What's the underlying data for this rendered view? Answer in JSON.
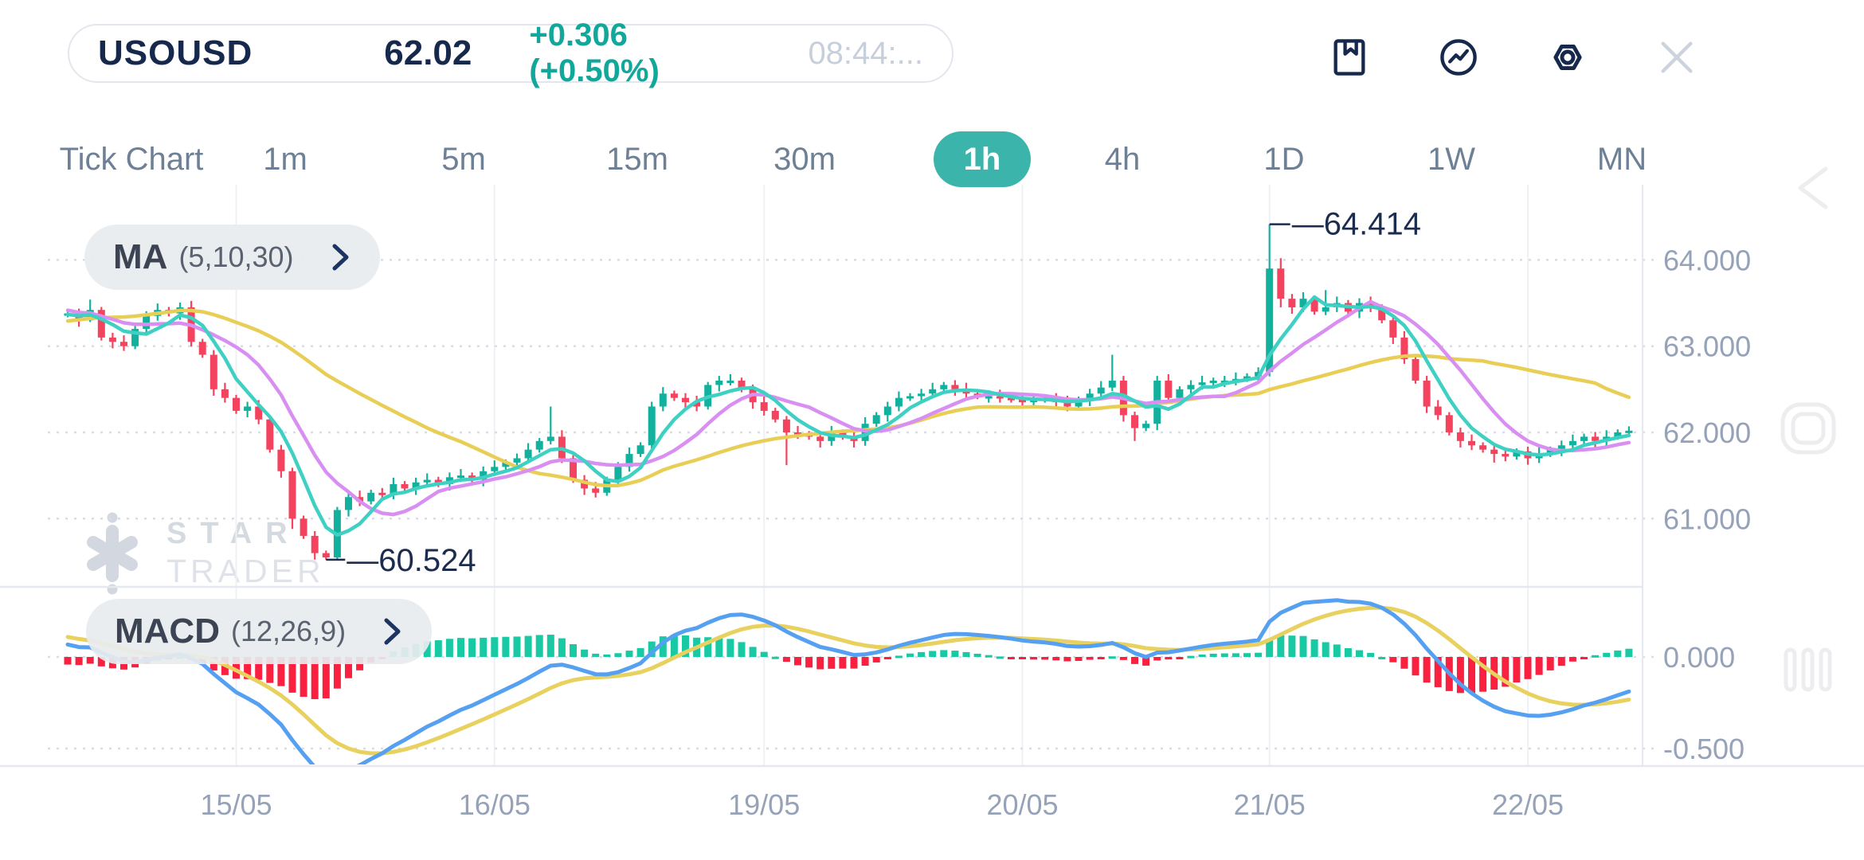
{
  "header": {
    "symbol": "USOUSD",
    "price": "62.02",
    "change": "+0.306 (+0.50%)",
    "time": "08:44:...",
    "icons": [
      "bookmark-icon",
      "indicator-icon",
      "settings-icon",
      "close-icon"
    ]
  },
  "timeframes": {
    "items": [
      "Tick Chart",
      "1m",
      "5m",
      "15m",
      "30m",
      "1h",
      "4h",
      "1D",
      "1W",
      "MN"
    ],
    "selected": "1h"
  },
  "indicators": {
    "ma": {
      "name": "MA",
      "params": "(5,10,30)"
    },
    "macd": {
      "name": "MACD",
      "params": "(12,26,9)"
    }
  },
  "watermark": {
    "line1": "STAR",
    "line2": "TRADER"
  },
  "chart_data": {
    "type": "candlestick",
    "timeframe": "1h",
    "price_axis": {
      "ticks": [
        "64.000",
        "63.000",
        "62.000",
        "61.000"
      ],
      "tick_values": [
        64,
        63,
        62,
        61
      ]
    },
    "macd_axis": {
      "ticks": [
        "0.000",
        "-0.500"
      ],
      "tick_values": [
        0,
        -0.5
      ]
    },
    "high_annotation": {
      "text": "—64.414",
      "value": 64.414,
      "bar": 107
    },
    "low_annotation": {
      "text": "—60.524",
      "value": 60.524,
      "bar": 23
    },
    "x_axis": {
      "labels": [
        "15/05",
        "16/05",
        "19/05",
        "20/05",
        "21/05",
        "22/05"
      ],
      "bars": [
        15,
        38,
        62,
        85,
        107,
        130
      ]
    },
    "ma_periods": [
      5,
      10,
      30
    ],
    "macd_params": [
      12,
      26,
      9
    ],
    "seed_closes": [
      62.9,
      63.1,
      63.3,
      63.5,
      63.65,
      63.7,
      63.72,
      63.7,
      63.68,
      63.65,
      63.6,
      63.55,
      63.5,
      63.45,
      63.42,
      63.4,
      63.38,
      63.36,
      63.35,
      63.37
    ],
    "closes": [
      63.38,
      63.3,
      63.42,
      63.1,
      63.05,
      63.0,
      63.2,
      63.35,
      63.42,
      63.38,
      63.45,
      63.05,
      62.9,
      62.5,
      62.4,
      62.25,
      62.3,
      62.15,
      61.8,
      61.55,
      61.0,
      60.8,
      60.6,
      60.55,
      61.1,
      61.25,
      61.2,
      61.3,
      61.28,
      61.4,
      61.35,
      61.42,
      61.45,
      61.4,
      61.48,
      61.5,
      61.45,
      61.55,
      61.6,
      61.65,
      61.7,
      61.8,
      61.9,
      61.95,
      61.7,
      61.45,
      61.35,
      61.3,
      61.45,
      61.6,
      61.75,
      61.85,
      62.3,
      62.45,
      62.4,
      62.35,
      62.3,
      62.55,
      62.6,
      62.6,
      62.5,
      62.35,
      62.25,
      62.15,
      62.0,
      61.98,
      61.95,
      61.9,
      62.0,
      61.95,
      61.9,
      62.1,
      62.2,
      62.3,
      62.4,
      62.42,
      62.45,
      62.5,
      62.55,
      62.5,
      62.45,
      62.42,
      62.42,
      62.4,
      62.38,
      62.35,
      62.38,
      62.4,
      62.35,
      62.3,
      62.38,
      62.45,
      62.52,
      62.6,
      62.2,
      62.05,
      62.1,
      62.6,
      62.4,
      62.5,
      62.55,
      62.58,
      62.6,
      62.6,
      62.62,
      62.65,
      62.7,
      63.9,
      63.55,
      63.45,
      63.55,
      63.4,
      63.45,
      63.5,
      63.4,
      63.5,
      63.45,
      63.3,
      63.1,
      62.85,
      62.6,
      62.3,
      62.2,
      62.0,
      61.9,
      61.85,
      61.8,
      61.75,
      61.72,
      61.78,
      61.7,
      61.75,
      61.8,
      61.85,
      61.9,
      61.95,
      61.9,
      61.95,
      62.0,
      62.02
    ],
    "wicks": {
      "2": [
        0.12,
        0.02
      ],
      "20": [
        0.04,
        0.12
      ],
      "23": [
        0.03,
        0.026
      ],
      "43": [
        0.35,
        0.04
      ],
      "64": [
        0.04,
        0.38
      ],
      "93": [
        0.3,
        0.04
      ],
      "95": [
        0.04,
        0.15
      ],
      "107": [
        0.514,
        0.05
      ],
      "108": [
        0.12,
        0.1
      ],
      "112": [
        0.2,
        0.04
      ],
      "127": [
        0.04,
        0.1
      ],
      "139": [
        0.05,
        0.03
      ]
    },
    "colors": {
      "up": "#12b19e",
      "down": "#f4435e",
      "ma5": "#3fd0c4",
      "ma10": "#d98ff2",
      "ma30": "#e8ce55",
      "macd_line": "#56a0f2",
      "signal_line": "#e8d15f",
      "hist_up": "#18c9a4",
      "hist_down": "#fa2040",
      "grid_dotted": "#d8dde4",
      "grid_vertical": "#eff1f5",
      "divider": "#e5e8ee",
      "axis_text": "#95a2b8",
      "label_text": "#1c2c4e",
      "accent_teal": "#3bb5ab",
      "navy": "#16294d"
    }
  }
}
